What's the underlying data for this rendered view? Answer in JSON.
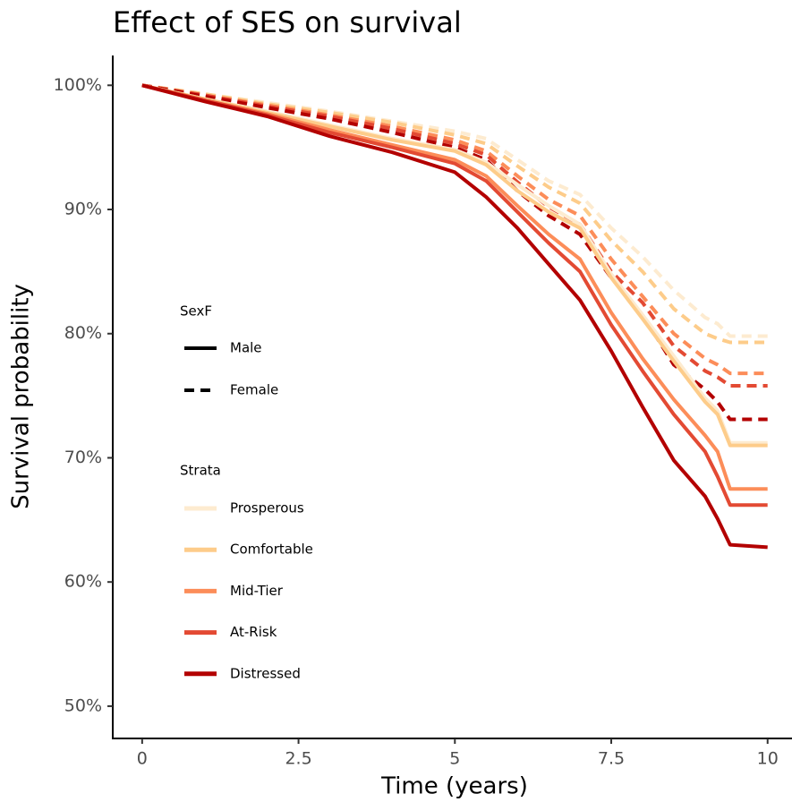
{
  "chart_data": {
    "type": "line",
    "title": "Effect of SES on survival",
    "x_label": "Time (years)",
    "y_label": "Survival probability",
    "x": [
      0,
      1,
      2,
      3,
      4,
      5,
      5.5,
      6,
      6.5,
      7,
      7.5,
      8,
      8.5,
      9,
      9.2,
      9.4,
      10
    ],
    "xlim": [
      -0.47,
      10.39
    ],
    "xticks": [
      0,
      2.5,
      5,
      7.5,
      10
    ],
    "ylim": [
      47.4,
      102.4
    ],
    "yticks": [
      {
        "value": 50,
        "label": "50%"
      },
      {
        "value": 60,
        "label": "60%"
      },
      {
        "value": 70,
        "label": "70%"
      },
      {
        "value": 80,
        "label": "80%"
      },
      {
        "value": 90,
        "label": "90%"
      },
      {
        "value": 100,
        "label": "100%"
      }
    ],
    "grid": false,
    "legend_position": "left",
    "groups_title": "SexF",
    "groups": [
      {
        "name": "Male",
        "dash": "solid"
      },
      {
        "name": "Female",
        "dash": "dashed"
      }
    ],
    "series_title": "Strata",
    "series": [
      {
        "name": "Prosperous",
        "color": "#fdebd0",
        "lines": [
          {
            "values": [
              100,
              98.9,
              97.9,
              96.8,
              95.7,
              94.8,
              93.8,
              92.0,
              90.3,
              88.8,
              84.8,
              81.5,
              78.2,
              74.8,
              73.8,
              71.2,
              71.2
            ]
          },
          {
            "values": [
              100,
              99.3,
              98.6,
              97.9,
              97.1,
              96.3,
              95.7,
              94.0,
              92.3,
              91.2,
              88.5,
              86.2,
              83.5,
              81.3,
              80.8,
              79.8,
              79.8
            ]
          }
        ]
      },
      {
        "name": "Comfortable",
        "color": "#fdcc8a",
        "lines": [
          {
            "values": [
              100,
              98.9,
              97.8,
              96.7,
              95.6,
              94.7,
              93.6,
              91.5,
              89.8,
              88.5,
              84.5,
              81.2,
              77.8,
              74.5,
              73.5,
              71.0,
              71.0
            ]
          },
          {
            "values": [
              100,
              99.3,
              98.5,
              97.8,
              97.0,
              96.0,
              95.3,
              93.5,
              91.8,
              90.5,
              87.5,
              85.0,
              82.0,
              80.0,
              79.6,
              79.3,
              79.3
            ]
          }
        ]
      },
      {
        "name": "Mid-Tier",
        "color": "#fc8d59",
        "lines": [
          {
            "values": [
              100,
              98.8,
              97.7,
              96.4,
              95.2,
              94.0,
              92.7,
              90.3,
              88.0,
              86.0,
              81.7,
              78.0,
              74.7,
              71.8,
              70.5,
              67.5,
              67.5
            ]
          },
          {
            "values": [
              100,
              99.2,
              98.4,
              97.6,
              96.7,
              95.6,
              94.7,
              92.7,
              90.8,
              89.5,
              86.0,
              83.0,
              80.0,
              78.0,
              77.5,
              76.8,
              76.8
            ]
          }
        ]
      },
      {
        "name": "At-Risk",
        "color": "#e34a33",
        "lines": [
          {
            "values": [
              100,
              98.8,
              97.6,
              96.2,
              95.0,
              93.7,
              92.3,
              89.8,
              87.3,
              85.0,
              80.7,
              77.0,
              73.5,
              70.5,
              68.5,
              66.2,
              66.2
            ]
          },
          {
            "values": [
              100,
              99.2,
              98.3,
              97.5,
              96.5,
              95.3,
              94.4,
              92.2,
              90.2,
              88.8,
              85.0,
              82.5,
              79.0,
              77.0,
              76.5,
              75.8,
              75.8
            ]
          }
        ]
      },
      {
        "name": "Distressed",
        "color": "#b30000",
        "lines": [
          {
            "values": [
              100,
              98.7,
              97.5,
              95.9,
              94.6,
              93.0,
              91.0,
              88.5,
              85.6,
              82.7,
              78.6,
              74.1,
              69.8,
              66.9,
              65.1,
              63.0,
              62.8
            ]
          },
          {
            "values": [
              100,
              99.1,
              98.2,
              97.3,
              96.2,
              95.0,
              94.0,
              91.5,
              89.5,
              88.0,
              84.5,
              81.5,
              77.5,
              75.5,
              74.5,
              73.1,
              73.1
            ]
          }
        ]
      }
    ]
  }
}
